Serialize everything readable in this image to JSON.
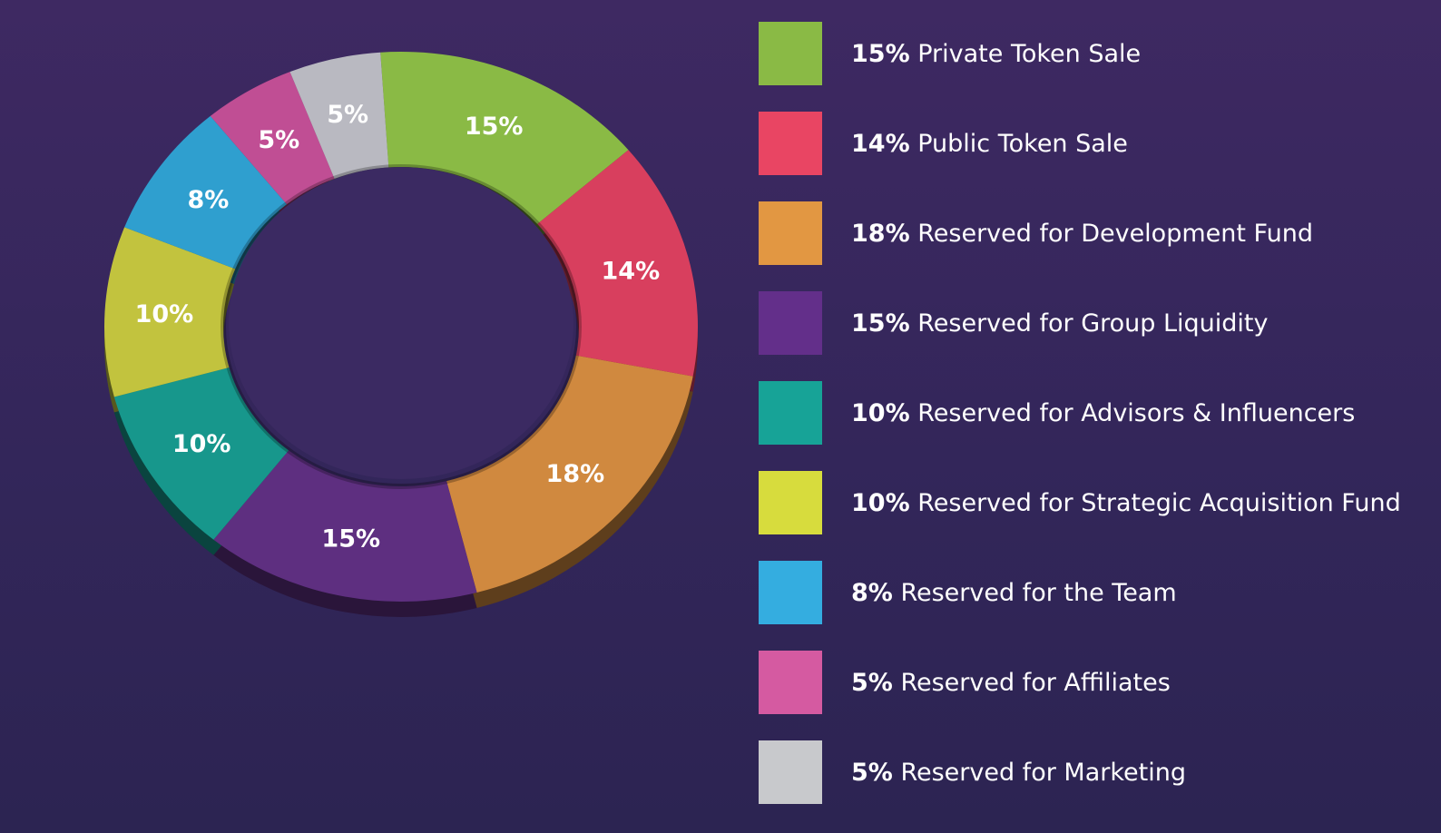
{
  "chart_data": {
    "type": "pie",
    "variant": "donut",
    "labels": [
      "Private Token Sale",
      "Public Token Sale",
      "Reserved for Development Fund",
      "Reserved for Group Liquidity",
      "Reserved for Advisors & Influencers",
      "Reserved for Strategic Acquisition Fund",
      "Reserved for the Team",
      "Reserved for Affiliates",
      "Reserved for Marketing"
    ],
    "values": [
      15,
      14,
      18,
      15,
      10,
      10,
      8,
      5,
      5
    ],
    "value_labels": [
      "15%",
      "14%",
      "18%",
      "15%",
      "10%",
      "10%",
      "8%",
      "5%",
      "5%"
    ],
    "colors": [
      "#8aba45",
      "#d83f5e",
      "#d0893f",
      "#5e2f80",
      "#17978c",
      "#c2c33e",
      "#2f9fcf",
      "#c04e94",
      "#b9b9c1"
    ],
    "legend_colors": [
      "#8aba45",
      "#e94563",
      "#e29742",
      "#632f8a",
      "#17a397",
      "#d7dc3d",
      "#34ade0",
      "#d55aa1",
      "#c8c9cc"
    ],
    "legend_position": "right",
    "title": ""
  },
  "legend": [
    {
      "pct": "15%",
      "label": "Private Token Sale"
    },
    {
      "pct": "14%",
      "label": "Public Token Sale"
    },
    {
      "pct": "18%",
      "label": "Reserved for Development Fund"
    },
    {
      "pct": "15%",
      "label": "Reserved for Group Liquidity"
    },
    {
      "pct": "10%",
      "label": "Reserved for Advisors & Influencers"
    },
    {
      "pct": "10%",
      "label": "Reserved for Strategic Acquisition Fund"
    },
    {
      "pct": "8%",
      "label": "Reserved for the Team"
    },
    {
      "pct": "5%",
      "label": "Reserved for Affiliates"
    },
    {
      "pct": "5%",
      "label": "Reserved for Marketing"
    }
  ]
}
